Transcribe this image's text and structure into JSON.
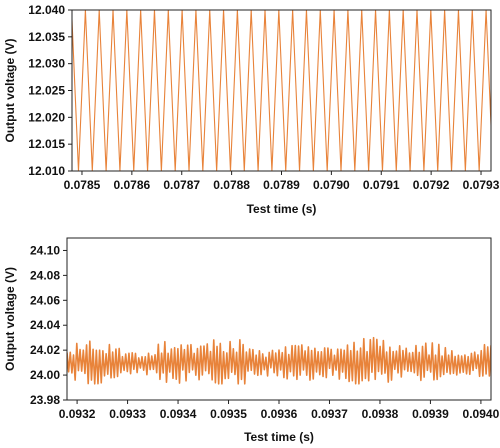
{
  "chart_data": [
    {
      "type": "line",
      "title": "",
      "xlabel": "Test time (s)",
      "ylabel": "Output voltage (V)",
      "xlim": [
        0.07848,
        0.07932
      ],
      "ylim": [
        12.01,
        12.04
      ],
      "x_ticks": [
        0.0785,
        0.0786,
        0.0787,
        0.0788,
        0.0789,
        0.079,
        0.0791,
        0.0792,
        0.0793
      ],
      "x_tick_labels": [
        "0.0785",
        "0.0786",
        "0.0787",
        "0.0788",
        "0.0789",
        "0.0790",
        "0.0791",
        "0.0792",
        "0.0793"
      ],
      "y_ticks": [
        12.01,
        12.015,
        12.02,
        12.025,
        12.03,
        12.035,
        12.04
      ],
      "y_tick_labels": [
        "12.010",
        "12.015",
        "12.020",
        "12.025",
        "12.030",
        "12.035",
        "12.040"
      ],
      "grid": false,
      "series": [
        {
          "color": "#E8833A",
          "waveform": "triangle",
          "min": 12.01,
          "max": 12.04,
          "period_s": 2.77e-05
        }
      ]
    },
    {
      "type": "line",
      "title": "",
      "xlabel": "Test time (s)",
      "ylabel": "Output voltage (V)",
      "xlim": [
        0.09318,
        0.09402
      ],
      "ylim": [
        23.98,
        24.11
      ],
      "x_ticks": [
        0.0932,
        0.0933,
        0.0934,
        0.0935,
        0.0936,
        0.0937,
        0.0938,
        0.0939,
        0.094
      ],
      "x_tick_labels": [
        "0.0932",
        "0.0933",
        "0.0934",
        "0.0935",
        "0.0936",
        "0.0937",
        "0.0938",
        "0.0939",
        "0.0940"
      ],
      "y_ticks": [
        23.98,
        24.0,
        24.02,
        24.04,
        24.06,
        24.08,
        24.1
      ],
      "y_tick_labels": [
        "23.98",
        "24.00",
        "24.02",
        "24.04",
        "24.06",
        "24.08",
        "24.10"
      ],
      "grid": false,
      "series": [
        {
          "color": "#E8833A",
          "waveform": "ripple",
          "mean": 24.01,
          "min": 23.993,
          "max": 24.03
        }
      ]
    }
  ]
}
